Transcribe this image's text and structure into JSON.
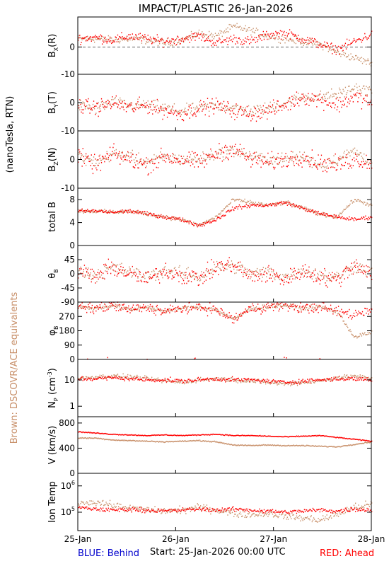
{
  "title": "IMPACT/PLASTIC   26-Jan-2026",
  "left_label": "(nanoTesla, RTN)",
  "side_label": "Brown: DSCOVR/ACE equivalents",
  "footer": {
    "blue": "BLUE: Behind",
    "start": "Start: 25-Jan-2026 00:00 UTC",
    "red": "RED: Ahead"
  },
  "colors": {
    "ahead": "#ff0000",
    "ace": "#c8906a",
    "behind": "#0000cc",
    "axis": "#000000"
  },
  "chart_data": {
    "type": "scatter",
    "x_ticks": [
      "25-Jan",
      "26-Jan",
      "27-Jan",
      "28-Jan"
    ],
    "x_range_days": [
      0,
      3
    ],
    "panels": [
      {
        "id": "bx",
        "ylabel_parts": [
          "B",
          "X",
          "(R)"
        ],
        "ylim": [
          -10,
          11
        ],
        "yticks": [
          "0",
          "-10"
        ],
        "ytick_values": [
          0,
          -10
        ],
        "zero_line": true,
        "series": {
          "ahead": {
            "base": [
              3,
              3.5,
              2.5,
              4,
              3,
              2,
              3,
              4,
              1.5,
              3,
              2,
              4.5,
              5,
              3,
              1,
              -1,
              2,
              4.5
            ],
            "noise": 2.5
          },
          "ace": {
            "base": [
              3,
              3,
              2.5,
              3,
              2.5,
              1.5,
              2.5,
              5,
              4,
              7.5,
              6,
              4,
              3,
              2,
              1,
              -2,
              -4,
              -6
            ],
            "noise": 2
          }
        }
      },
      {
        "id": "by",
        "ylabel_parts": [
          "B",
          "Y",
          "(T)"
        ],
        "ylim": [
          -10,
          10
        ],
        "yticks": [
          "0",
          "-10"
        ],
        "ytick_values": [
          0,
          -10
        ],
        "zero_line": false,
        "series": {
          "ahead": {
            "base": [
              -1,
              -2,
              0,
              -2,
              -1,
              -3,
              -4,
              -2,
              -1,
              -3,
              -4,
              -3,
              -1,
              2,
              1,
              -1,
              2,
              0
            ],
            "noise": 4
          },
          "ace": {
            "base": [
              -1,
              -2,
              0,
              -1,
              -1,
              -2,
              -3,
              -2,
              -1,
              -2,
              -3,
              -2,
              0,
              2,
              2,
              3,
              5,
              4
            ],
            "noise": 3
          }
        }
      },
      {
        "id": "bz",
        "ylabel_parts": [
          "B",
          "Z",
          "(N)"
        ],
        "ylim": [
          -10,
          10
        ],
        "yticks": [
          "0",
          "-10"
        ],
        "ytick_values": [
          0,
          -10
        ],
        "zero_line": false,
        "series": {
          "ahead": {
            "base": [
              1,
              -2,
              2,
              0,
              -2,
              1,
              0,
              -1,
              2,
              4,
              0,
              -1,
              0,
              1,
              -1,
              -2,
              0,
              -1
            ],
            "noise": 4.5
          },
          "ace": {
            "base": [
              1,
              -1,
              2,
              1,
              -1,
              1,
              0,
              0,
              2,
              3,
              1,
              0,
              0,
              1,
              -2,
              0,
              3,
              -1
            ],
            "noise": 3
          }
        }
      },
      {
        "id": "bt",
        "ylabel": "total B",
        "ylim": [
          0,
          10
        ],
        "yticks": [
          "0",
          "4",
          "8"
        ],
        "ytick_values": [
          0,
          4,
          8
        ],
        "zero_line": false,
        "series": {
          "ahead": {
            "base": [
              6,
              6,
              5.8,
              6,
              5.5,
              5,
              4.5,
              3.5,
              4.5,
              6.5,
              7,
              7,
              7.5,
              6.5,
              5.5,
              5,
              4.5,
              5
            ],
            "noise": 0.5
          },
          "ace": {
            "base": [
              6,
              6,
              5.8,
              6,
              5.5,
              5,
              4.5,
              3.5,
              5,
              8,
              7.5,
              7,
              7.5,
              6.5,
              5.5,
              5,
              8,
              7
            ],
            "noise": 0.5
          }
        }
      },
      {
        "id": "theta",
        "ylabel": "θ",
        "ylabel_sub": "B",
        "ylim": [
          -90,
          90
        ],
        "yticks": [
          "45",
          "0",
          "-45",
          "-90"
        ],
        "ytick_values": [
          45,
          0,
          -45,
          -90
        ],
        "zero_line": false,
        "series": {
          "ahead": {
            "base": [
              10,
              -10,
              20,
              0,
              -20,
              10,
              -5,
              -15,
              20,
              30,
              -10,
              0,
              -20,
              10,
              -10,
              -20,
              30,
              0
            ],
            "noise": 40
          },
          "ace": {
            "base": [
              10,
              -5,
              20,
              5,
              -10,
              10,
              0,
              -10,
              20,
              25,
              0,
              5,
              -10,
              10,
              -5,
              -10,
              25,
              5
            ],
            "noise": 30
          }
        }
      },
      {
        "id": "phi",
        "ylabel": "φ",
        "ylabel_sub": "B",
        "ylim": [
          0,
          360
        ],
        "yticks": [
          "270",
          "180",
          "90",
          "0"
        ],
        "ytick_values": [
          270,
          180,
          90,
          0
        ],
        "zero_line": false,
        "series": {
          "ahead": {
            "base": [
              330,
              320,
              340,
              310,
              330,
              300,
              320,
              330,
              310,
              250,
              320,
              330,
              340,
              320,
              330,
              300,
              280,
              320
            ],
            "noise": 50
          },
          "ace": {
            "base": [
              330,
              320,
              340,
              310,
              330,
              300,
              320,
              330,
              310,
              250,
              320,
              330,
              340,
              320,
              330,
              300,
              140,
              170
            ],
            "noise": 20
          }
        }
      },
      {
        "id": "np",
        "ylabel": "N",
        "ylabel_sub": "P",
        "ylabel_tail": " (cm",
        "ylabel_sup": "-3",
        "ylabel_end": ")",
        "scale": "log",
        "ylim": [
          0.4,
          60
        ],
        "yticks": [
          "10",
          "1"
        ],
        "ytick_values": [
          10,
          1
        ],
        "zero_line": false,
        "series": {
          "ahead": {
            "base": [
              11,
              11,
              12,
              11,
              10,
              10,
              9,
              10,
              11,
              10,
              10,
              9,
              8,
              9,
              10,
              11,
              11,
              10
            ],
            "noise": 0.12
          },
          "ace": {
            "base": [
              11,
              13,
              14,
              13,
              11,
              9,
              8,
              10,
              11,
              10,
              9,
              8,
              7,
              8,
              9,
              12,
              14,
              11
            ],
            "noise": 0.12
          }
        }
      },
      {
        "id": "v",
        "ylabel": "V (km/s)",
        "ylim": [
          0,
          900
        ],
        "yticks": [
          "800",
          "400",
          "0"
        ],
        "ytick_values": [
          800,
          400,
          0
        ],
        "zero_line": false,
        "series": {
          "ahead": {
            "base": [
              660,
              640,
              620,
              610,
              600,
              610,
              600,
              610,
              620,
              600,
              600,
              590,
              580,
              590,
              600,
              570,
              540,
              510
            ],
            "noise": 10
          },
          "ace": {
            "base": [
              560,
              560,
              530,
              520,
              510,
              500,
              510,
              520,
              500,
              450,
              440,
              450,
              440,
              440,
              430,
              420,
              460,
              500
            ],
            "noise": 12
          }
        }
      },
      {
        "id": "temp",
        "ylabel": "Ion Temp",
        "scale": "log",
        "ylim": [
          20000,
          3000000
        ],
        "yticks": [
          "10^6",
          "10^5"
        ],
        "ytick_values": [
          1000000,
          100000
        ],
        "zero_line": false,
        "series": {
          "ahead": {
            "base": [
              150000,
              130000,
              120000,
              130000,
              120000,
              110000,
              120000,
              130000,
              120000,
              130000,
              120000,
              110000,
              100000,
              110000,
              120000,
              110000,
              130000,
              120000
            ],
            "noise": 0.12
          },
          "ace": {
            "base": [
              200000,
              250000,
              180000,
              140000,
              120000,
              110000,
              120000,
              150000,
              120000,
              90000,
              80000,
              90000,
              70000,
              60000,
              50000,
              80000,
              150000,
              200000
            ],
            "noise": 0.2
          }
        }
      }
    ]
  }
}
